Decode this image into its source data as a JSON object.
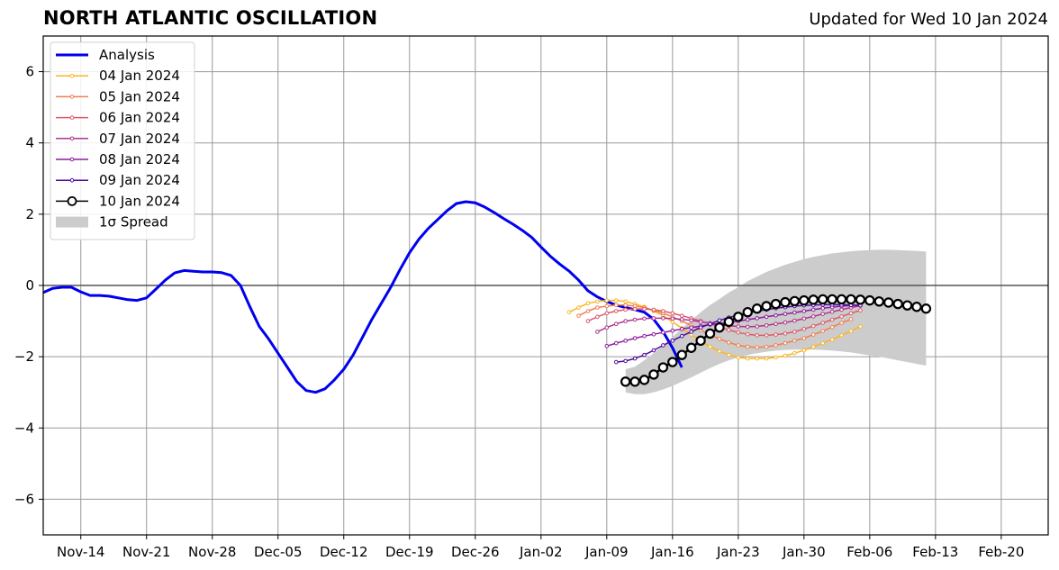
{
  "header": {
    "title": "NORTH ATLANTIC OSCILLATION",
    "subtitle": "Updated for Wed 10 Jan 2024"
  },
  "chart_data": {
    "type": "line",
    "title": "NORTH ATLANTIC OSCILLATION",
    "subtitle": "Updated for Wed 10 Jan 2024",
    "xlabel": "",
    "ylabel": "",
    "x_unit": "date",
    "xlim": [
      "2023-11-10",
      "2024-02-25"
    ],
    "ylim": [
      -7,
      7
    ],
    "x_ticks": [
      {
        "date": "2023-11-14",
        "label": "Nov-14"
      },
      {
        "date": "2023-11-21",
        "label": "Nov-21"
      },
      {
        "date": "2023-11-28",
        "label": "Nov-28"
      },
      {
        "date": "2023-12-05",
        "label": "Dec-05"
      },
      {
        "date": "2023-12-12",
        "label": "Dec-12"
      },
      {
        "date": "2023-12-19",
        "label": "Dec-19"
      },
      {
        "date": "2023-12-26",
        "label": "Dec-26"
      },
      {
        "date": "2024-01-02",
        "label": "Jan-02"
      },
      {
        "date": "2024-01-09",
        "label": "Jan-09"
      },
      {
        "date": "2024-01-16",
        "label": "Jan-16"
      },
      {
        "date": "2024-01-23",
        "label": "Jan-23"
      },
      {
        "date": "2024-01-30",
        "label": "Jan-30"
      },
      {
        "date": "2024-02-06",
        "label": "Feb-06"
      },
      {
        "date": "2024-02-13",
        "label": "Feb-13"
      },
      {
        "date": "2024-02-20",
        "label": "Feb-20"
      }
    ],
    "y_ticks": [
      {
        "value": 6,
        "label": "6"
      },
      {
        "value": 4,
        "label": "4"
      },
      {
        "value": 2,
        "label": "2"
      },
      {
        "value": 0,
        "label": "0"
      },
      {
        "value": -2,
        "label": "−2"
      },
      {
        "value": -4,
        "label": "−4"
      },
      {
        "value": -6,
        "label": "−6"
      }
    ],
    "grid": true,
    "legend_position": "top-left",
    "series": [
      {
        "name": "Analysis",
        "kind": "analysis",
        "color": "#0000ee",
        "x_start": "2023-11-10",
        "values": [
          -0.2,
          -0.08,
          -0.05,
          -0.05,
          -0.18,
          -0.28,
          -0.28,
          -0.3,
          -0.35,
          -0.4,
          -0.42,
          -0.35,
          -0.1,
          0.15,
          0.35,
          0.42,
          0.4,
          0.38,
          0.38,
          0.36,
          0.28,
          0.0,
          -0.6,
          -1.15,
          -1.5,
          -1.9,
          -2.3,
          -2.7,
          -2.95,
          -3.0,
          -2.9,
          -2.65,
          -2.35,
          -1.95,
          -1.45,
          -0.95,
          -0.5,
          -0.05,
          0.45,
          0.92,
          1.3,
          1.6,
          1.85,
          2.1,
          2.3,
          2.35,
          2.32,
          2.2,
          2.05,
          1.88,
          1.72,
          1.55,
          1.35,
          1.08,
          0.82,
          0.6,
          0.4,
          0.15,
          -0.15,
          -0.32,
          -0.45,
          -0.55,
          -0.62,
          -0.68,
          -0.75,
          -0.95,
          -1.3,
          -1.75,
          -2.3
        ]
      },
      {
        "name": "04 Jan 2024",
        "kind": "forecast",
        "color": "#fbb51f",
        "x_start": "2024-01-05",
        "values": [
          -0.75,
          -0.62,
          -0.5,
          -0.45,
          -0.42,
          -0.42,
          -0.45,
          -0.52,
          -0.6,
          -0.72,
          -0.85,
          -1.02,
          -1.2,
          -1.38,
          -1.55,
          -1.72,
          -1.85,
          -1.95,
          -2.02,
          -2.05,
          -2.05,
          -2.05,
          -2.02,
          -1.97,
          -1.9,
          -1.82,
          -1.72,
          -1.62,
          -1.52,
          -1.4,
          -1.28,
          -1.15
        ]
      },
      {
        "name": "05 Jan 2024",
        "kind": "forecast",
        "color": "#f07f4f",
        "x_start": "2024-01-06",
        "values": [
          -0.85,
          -0.72,
          -0.62,
          -0.58,
          -0.55,
          -0.55,
          -0.58,
          -0.62,
          -0.7,
          -0.78,
          -0.88,
          -1.0,
          -1.12,
          -1.25,
          -1.38,
          -1.5,
          -1.6,
          -1.68,
          -1.72,
          -1.74,
          -1.72,
          -1.68,
          -1.62,
          -1.55,
          -1.48,
          -1.38,
          -1.28,
          -1.17,
          -1.05,
          -0.95
        ]
      },
      {
        "name": "06 Jan 2024",
        "kind": "forecast",
        "color": "#dd5a6a",
        "x_start": "2024-01-07",
        "values": [
          -1.0,
          -0.88,
          -0.78,
          -0.72,
          -0.68,
          -0.66,
          -0.66,
          -0.68,
          -0.72,
          -0.78,
          -0.85,
          -0.92,
          -1.0,
          -1.08,
          -1.17,
          -1.25,
          -1.32,
          -1.37,
          -1.4,
          -1.4,
          -1.38,
          -1.35,
          -1.3,
          -1.22,
          -1.14,
          -1.05,
          -0.96,
          -0.87,
          -0.78,
          -0.7
        ]
      },
      {
        "name": "07 Jan 2024",
        "kind": "forecast",
        "color": "#b0338e",
        "x_start": "2024-01-08",
        "values": [
          -1.3,
          -1.18,
          -1.08,
          -1.0,
          -0.96,
          -0.93,
          -0.92,
          -0.92,
          -0.93,
          -0.95,
          -0.98,
          -1.02,
          -1.06,
          -1.1,
          -1.13,
          -1.15,
          -1.16,
          -1.15,
          -1.12,
          -1.08,
          -1.04,
          -0.99,
          -0.93,
          -0.87,
          -0.8,
          -0.74,
          -0.68,
          -0.62,
          -0.57
        ]
      },
      {
        "name": "08 Jan 2024",
        "kind": "forecast",
        "color": "#8d1aa0",
        "x_start": "2024-01-09",
        "values": [
          -1.7,
          -1.62,
          -1.55,
          -1.48,
          -1.42,
          -1.37,
          -1.32,
          -1.27,
          -1.22,
          -1.18,
          -1.14,
          -1.1,
          -1.07,
          -1.04,
          -1.0,
          -0.96,
          -0.92,
          -0.88,
          -0.84,
          -0.8,
          -0.76,
          -0.72,
          -0.68,
          -0.64,
          -0.61,
          -0.58,
          -0.56,
          -0.55
        ]
      },
      {
        "name": "09 Jan 2024",
        "kind": "forecast",
        "color": "#4d0aa0",
        "x_start": "2024-01-10",
        "values": [
          -2.15,
          -2.12,
          -2.05,
          -1.95,
          -1.82,
          -1.68,
          -1.55,
          -1.42,
          -1.3,
          -1.18,
          -1.08,
          -0.98,
          -0.9,
          -0.83,
          -0.77,
          -0.72,
          -0.68,
          -0.64,
          -0.61,
          -0.58,
          -0.56,
          -0.55,
          -0.54,
          -0.54,
          -0.54,
          -0.55,
          -0.56
        ]
      },
      {
        "name": "10 Jan 2024",
        "kind": "forecast-main",
        "color": "#000000",
        "x_start": "2024-01-11",
        "values": [
          -2.7,
          -2.7,
          -2.65,
          -2.5,
          -2.3,
          -2.15,
          -1.95,
          -1.75,
          -1.55,
          -1.35,
          -1.18,
          -1.02,
          -0.88,
          -0.75,
          -0.65,
          -0.58,
          -0.52,
          -0.47,
          -0.44,
          -0.42,
          -0.4,
          -0.39,
          -0.39,
          -0.39,
          -0.39,
          -0.4,
          -0.42,
          -0.45,
          -0.48,
          -0.52,
          -0.56,
          -0.6,
          -0.65
        ]
      }
    ],
    "spread": {
      "name": "1σ Spread",
      "color": "#cccccc",
      "x_start": "2024-01-11",
      "upper": [
        -2.35,
        -2.28,
        -2.1,
        -1.9,
        -1.68,
        -1.45,
        -1.2,
        -0.98,
        -0.75,
        -0.55,
        -0.38,
        -0.2,
        -0.05,
        0.12,
        0.25,
        0.38,
        0.48,
        0.58,
        0.66,
        0.74,
        0.8,
        0.85,
        0.9,
        0.93,
        0.96,
        0.98,
        0.99,
        1.0,
        1.0,
        0.99,
        0.98,
        0.97,
        0.95
      ],
      "lower": [
        -3.0,
        -3.05,
        -3.05,
        -3.0,
        -2.92,
        -2.82,
        -2.7,
        -2.58,
        -2.45,
        -2.32,
        -2.2,
        -2.1,
        -2.02,
        -1.95,
        -1.9,
        -1.86,
        -1.83,
        -1.81,
        -1.8,
        -1.8,
        -1.8,
        -1.81,
        -1.83,
        -1.85,
        -1.88,
        -1.92,
        -1.96,
        -2.0,
        -2.05,
        -2.1,
        -2.15,
        -2.2,
        -2.25
      ]
    },
    "legend": [
      {
        "label": "Analysis",
        "style": "thick-line",
        "color": "#0000ee"
      },
      {
        "label": "04 Jan 2024",
        "style": "line-dot",
        "color": "#fbb51f"
      },
      {
        "label": "05 Jan 2024",
        "style": "line-dot",
        "color": "#f07f4f"
      },
      {
        "label": "06 Jan 2024",
        "style": "line-dot",
        "color": "#dd5a6a"
      },
      {
        "label": "07 Jan 2024",
        "style": "line-dot",
        "color": "#b0338e"
      },
      {
        "label": "08 Jan 2024",
        "style": "line-dot",
        "color": "#8d1aa0"
      },
      {
        "label": "09 Jan 2024",
        "style": "line-dot",
        "color": "#4d0aa0"
      },
      {
        "label": "10 Jan 2024",
        "style": "line-circle",
        "color": "#000000"
      },
      {
        "label": "1σ Spread",
        "style": "patch",
        "color": "#cccccc"
      }
    ]
  }
}
